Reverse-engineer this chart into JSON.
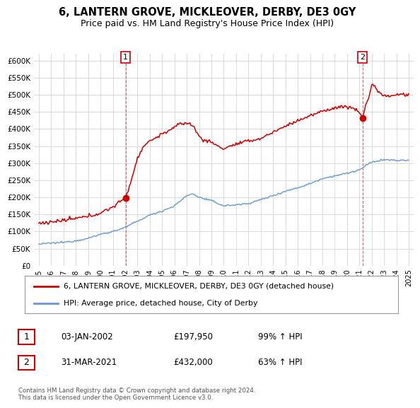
{
  "title": "6, LANTERN GROVE, MICKLEOVER, DERBY, DE3 0GY",
  "subtitle": "Price paid vs. HM Land Registry's House Price Index (HPI)",
  "ylim": [
    0,
    620000
  ],
  "yticks": [
    0,
    50000,
    100000,
    150000,
    200000,
    250000,
    300000,
    350000,
    400000,
    450000,
    500000,
    550000,
    600000
  ],
  "ytick_labels": [
    "£0",
    "£50K",
    "£100K",
    "£150K",
    "£200K",
    "£250K",
    "£300K",
    "£350K",
    "£400K",
    "£450K",
    "£500K",
    "£550K",
    "£600K"
  ],
  "line1_color": "#cc0000",
  "line2_color": "#6699cc",
  "sale1_date": 2002.04,
  "sale1_price": 197950,
  "sale2_date": 2021.25,
  "sale2_price": 432000,
  "legend_line1": "6, LANTERN GROVE, MICKLEOVER, DERBY, DE3 0GY (detached house)",
  "legend_line2": "HPI: Average price, detached house, City of Derby",
  "table_row1_num": "1",
  "table_row1_date": "03-JAN-2002",
  "table_row1_price": "£197,950",
  "table_row1_hpi": "99% ↑ HPI",
  "table_row2_num": "2",
  "table_row2_date": "31-MAR-2021",
  "table_row2_price": "£432,000",
  "table_row2_hpi": "63% ↑ HPI",
  "footnote": "Contains HM Land Registry data © Crown copyright and database right 2024.\nThis data is licensed under the Open Government Licence v3.0.",
  "bg_color": "#ffffff",
  "grid_color": "#cccccc"
}
